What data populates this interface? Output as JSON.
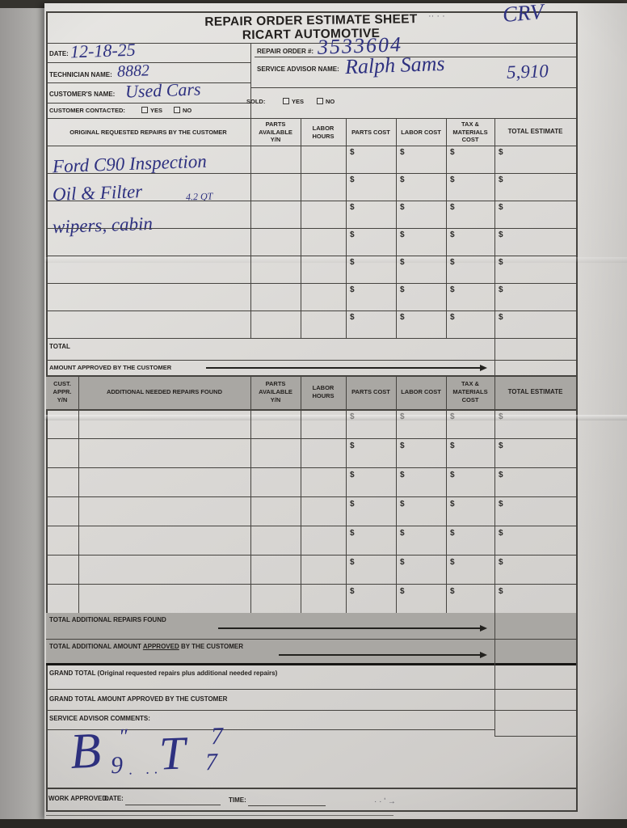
{
  "colors": {
    "ink": "#2e3180",
    "paper": "#d9d7d4",
    "band_gray": "#a9a7a3",
    "line": "#45433f"
  },
  "title": {
    "line1": "REPAIR ORDER ESTIMATE SHEET",
    "line2": "RICART AUTOMOTIVE"
  },
  "pen_marks": {
    "vehicle": "CRV",
    "amount": "5,910",
    "title_dots": "··   · ·",
    "approval_marks": "·  ·   ʹ →"
  },
  "fields": {
    "date_label": "DATE:",
    "date_value": "12-18-25",
    "repair_order_label": "REPAIR ORDER #:",
    "repair_order_value": "3533604",
    "technician_label": "TECHNICIAN NAME:",
    "technician_value": "8882",
    "advisor_label": "SERVICE ADVISOR NAME:",
    "advisor_value": "Ralph Sams",
    "customer_label": "CUSTOMER'S NAME:",
    "customer_value": "Used Cars",
    "contacted_label": "CUSTOMER CONTACTED:",
    "sold_label": "SOLD:",
    "yes": "YES",
    "no": "NO"
  },
  "currency": "$",
  "original_table": {
    "col_repairs": "ORIGINAL REQUESTED REPAIRS BY THE CUSTOMER",
    "col_parts_available": "PARTS\nAVAILABLE\nY/N",
    "col_labor_hours": "LABOR\nHOURS",
    "col_parts_cost": "PARTS COST",
    "col_labor_cost": "LABOR COST",
    "col_tax": "TAX &\nMATERIALS\nCOST",
    "col_total": "TOTAL ESTIMATE",
    "rows": [
      {
        "repair": "Ford C90 Inspection",
        "note": ""
      },
      {
        "repair": "Oil & Filter",
        "note": "4.2 QT"
      },
      {
        "repair": "wipers, cabin",
        "note": ""
      },
      {
        "repair": "",
        "note": ""
      },
      {
        "repair": "",
        "note": ""
      },
      {
        "repair": "",
        "note": ""
      },
      {
        "repair": "",
        "note": ""
      }
    ],
    "total_label": "TOTAL",
    "approved_label": "AMOUNT APPROVED BY THE CUSTOMER"
  },
  "additional_table": {
    "col_cust_appr": "CUST.\nAPPR.\nY/N",
    "col_found": "ADDITIONAL NEEDED REPAIRS FOUND",
    "col_parts_available": "PARTS\nAVAILABLE\nY/N",
    "col_labor_hours": "LABOR\nHOURS",
    "col_parts_cost": "PARTS COST",
    "col_labor_cost": "LABOR COST",
    "col_tax": "TAX &\nMATERIALS\nCOST",
    "col_total": "TOTAL ESTIMATE",
    "row_count": 7,
    "total_found_label": "TOTAL ADDITIONAL REPAIRS FOUND",
    "approved_pre": "TOTAL ADDITIONAL AMOUNT ",
    "approved_word": "APPROVED",
    "approved_post": " BY THE CUSTOMER"
  },
  "footer": {
    "grand_total_label": "GRAND TOTAL (Original requested repairs plus additional needed repairs)",
    "grand_total_approved_label": "GRAND TOTAL AMOUNT APPROVED BY THE CUSTOMER",
    "comments_label": "SERVICE ADVISOR COMMENTS:",
    "work_approved_label": "WORK APPROVED:",
    "date_label": "DATE:",
    "time_label": "TIME:",
    "scrawl": {
      "b": "B",
      "quote": "″",
      "nine": "9",
      "dots": "· ··",
      "t": "T",
      "seven_a": "7",
      "seven_b": "7"
    }
  }
}
